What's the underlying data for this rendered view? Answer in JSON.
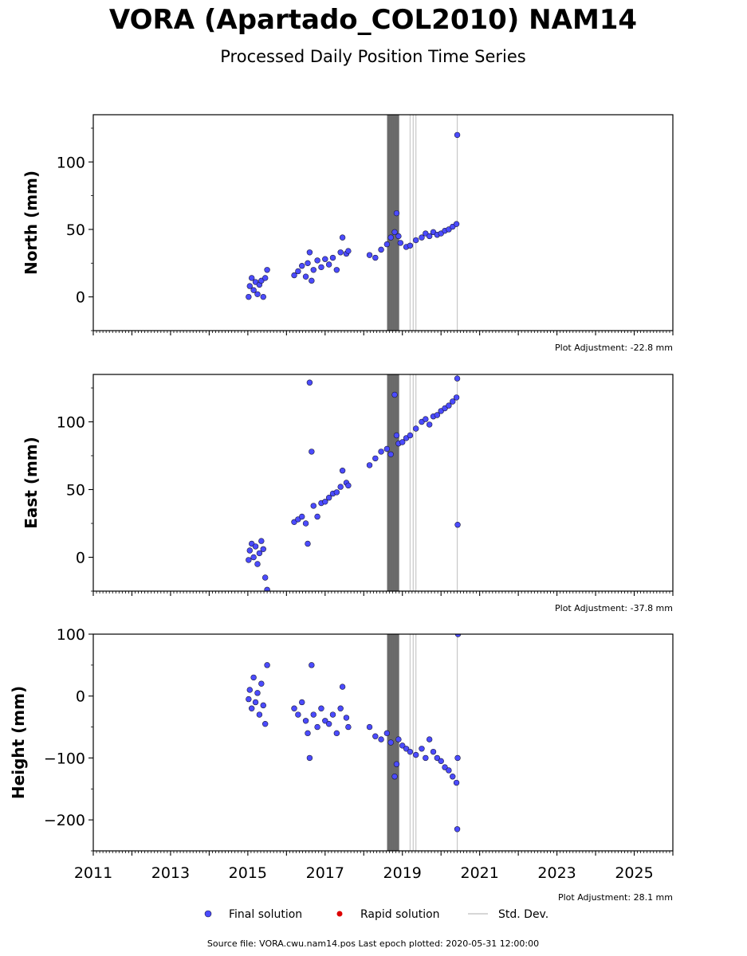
{
  "title": "VORA (Apartado_COL2010) NAM14",
  "subtitle": "Processed Daily Position Time Series",
  "source_note": "Source file: VORA.cwu.nam14.pos  Last epoch plotted: 2020-05-31 12:00:00",
  "legend": {
    "placement": "bottom-center",
    "final_label": "Final solution",
    "rapid_label": "Rapid solution",
    "std_label": "Std. Dev."
  },
  "colors": {
    "final": "#4b4bff",
    "final_edge": "#1a1a3a",
    "rapid": "#dd0000",
    "stddev": "#c8c8c8",
    "stddev_dense": "#6b6b6b"
  },
  "chart_data": [
    {
      "type": "scatter",
      "ylabel": "North (mm)",
      "adjustment": "Plot Adjustment: -22.8 mm",
      "xlim": [
        2011,
        2026
      ],
      "ylim": [
        -25,
        135
      ],
      "yticks": [
        0,
        50,
        100
      ],
      "grid": false,
      "series": [
        {
          "name": "Final solution",
          "points": [
            [
              2015.02,
              0
            ],
            [
              2015.05,
              8
            ],
            [
              2015.1,
              14
            ],
            [
              2015.15,
              5
            ],
            [
              2015.2,
              11
            ],
            [
              2015.25,
              2
            ],
            [
              2015.3,
              9
            ],
            [
              2015.35,
              12
            ],
            [
              2015.4,
              0
            ],
            [
              2015.45,
              14
            ],
            [
              2015.5,
              20
            ],
            [
              2016.2,
              16
            ],
            [
              2016.3,
              19
            ],
            [
              2016.4,
              23
            ],
            [
              2016.5,
              15
            ],
            [
              2016.55,
              25
            ],
            [
              2016.6,
              33
            ],
            [
              2016.65,
              12
            ],
            [
              2016.7,
              20
            ],
            [
              2016.8,
              27
            ],
            [
              2016.9,
              22
            ],
            [
              2017.0,
              28
            ],
            [
              2017.1,
              24
            ],
            [
              2017.2,
              29
            ],
            [
              2017.3,
              20
            ],
            [
              2017.4,
              33
            ],
            [
              2017.45,
              44
            ],
            [
              2017.55,
              32
            ],
            [
              2017.6,
              34
            ],
            [
              2018.15,
              31
            ],
            [
              2018.3,
              29
            ],
            [
              2018.45,
              35
            ],
            [
              2018.6,
              39
            ],
            [
              2018.7,
              44
            ],
            [
              2018.8,
              48
            ],
            [
              2018.85,
              62
            ],
            [
              2018.9,
              45
            ],
            [
              2018.95,
              40
            ],
            [
              2019.1,
              37
            ],
            [
              2019.2,
              38
            ],
            [
              2019.35,
              42
            ],
            [
              2019.5,
              44
            ],
            [
              2019.6,
              47
            ],
            [
              2019.7,
              45
            ],
            [
              2019.8,
              48
            ],
            [
              2019.9,
              46
            ],
            [
              2020.0,
              47
            ],
            [
              2020.1,
              49
            ],
            [
              2020.2,
              50
            ],
            [
              2020.3,
              52
            ],
            [
              2020.4,
              54
            ],
            [
              2020.42,
              120
            ]
          ]
        }
      ],
      "stddev_x": [
        2018.62,
        2018.64,
        2018.66,
        2018.68,
        2018.7,
        2018.72,
        2018.74,
        2018.76,
        2018.78,
        2018.8,
        2018.82,
        2018.84,
        2018.86,
        2018.88,
        2018.9,
        2019.2,
        2019.28,
        2019.35,
        2020.42
      ]
    },
    {
      "type": "scatter",
      "ylabel": "East (mm)",
      "adjustment": "Plot Adjustment: -37.8 mm",
      "xlim": [
        2011,
        2026
      ],
      "ylim": [
        -25,
        135
      ],
      "yticks": [
        0,
        50,
        100
      ],
      "grid": false,
      "series": [
        {
          "name": "Final solution",
          "points": [
            [
              2015.02,
              -2
            ],
            [
              2015.05,
              5
            ],
            [
              2015.1,
              10
            ],
            [
              2015.15,
              0
            ],
            [
              2015.2,
              8
            ],
            [
              2015.25,
              -5
            ],
            [
              2015.3,
              3
            ],
            [
              2015.35,
              12
            ],
            [
              2015.4,
              6
            ],
            [
              2015.45,
              -15
            ],
            [
              2015.5,
              -24
            ],
            [
              2016.2,
              26
            ],
            [
              2016.3,
              28
            ],
            [
              2016.4,
              30
            ],
            [
              2016.5,
              25
            ],
            [
              2016.55,
              10
            ],
            [
              2016.6,
              129
            ],
            [
              2016.65,
              78
            ],
            [
              2016.7,
              38
            ],
            [
              2016.8,
              30
            ],
            [
              2016.9,
              40
            ],
            [
              2017.0,
              41
            ],
            [
              2017.1,
              44
            ],
            [
              2017.2,
              47
            ],
            [
              2017.3,
              48
            ],
            [
              2017.4,
              52
            ],
            [
              2017.45,
              64
            ],
            [
              2017.55,
              55
            ],
            [
              2017.6,
              53
            ],
            [
              2018.15,
              68
            ],
            [
              2018.3,
              73
            ],
            [
              2018.45,
              78
            ],
            [
              2018.6,
              80
            ],
            [
              2018.7,
              76
            ],
            [
              2018.8,
              120
            ],
            [
              2018.85,
              90
            ],
            [
              2018.9,
              84
            ],
            [
              2019.0,
              85
            ],
            [
              2019.1,
              88
            ],
            [
              2019.2,
              90
            ],
            [
              2019.35,
              95
            ],
            [
              2019.5,
              100
            ],
            [
              2019.6,
              102
            ],
            [
              2019.7,
              98
            ],
            [
              2019.8,
              104
            ],
            [
              2019.9,
              105
            ],
            [
              2020.0,
              108
            ],
            [
              2020.1,
              110
            ],
            [
              2020.2,
              112
            ],
            [
              2020.3,
              115
            ],
            [
              2020.4,
              118
            ],
            [
              2020.42,
              132
            ],
            [
              2020.43,
              24
            ]
          ]
        }
      ],
      "stddev_x": [
        2018.62,
        2018.64,
        2018.66,
        2018.68,
        2018.7,
        2018.72,
        2018.74,
        2018.76,
        2018.78,
        2018.8,
        2018.82,
        2018.84,
        2018.86,
        2018.88,
        2018.9,
        2019.2,
        2019.28,
        2019.35,
        2020.42
      ]
    },
    {
      "type": "scatter",
      "ylabel": "Height (mm)",
      "adjustment": "Plot Adjustment: 28.1 mm",
      "xlim": [
        2011,
        2026
      ],
      "ylim": [
        -250,
        100
      ],
      "yticks": [
        -200,
        -100,
        0,
        100
      ],
      "xticks": [
        2011,
        2013,
        2015,
        2017,
        2019,
        2021,
        2023,
        2025
      ],
      "grid": false,
      "series": [
        {
          "name": "Final solution",
          "points": [
            [
              2015.02,
              -5
            ],
            [
              2015.05,
              10
            ],
            [
              2015.1,
              -20
            ],
            [
              2015.15,
              30
            ],
            [
              2015.2,
              -10
            ],
            [
              2015.25,
              5
            ],
            [
              2015.3,
              -30
            ],
            [
              2015.35,
              20
            ],
            [
              2015.4,
              -15
            ],
            [
              2015.45,
              -45
            ],
            [
              2015.5,
              50
            ],
            [
              2016.2,
              -20
            ],
            [
              2016.3,
              -30
            ],
            [
              2016.4,
              -10
            ],
            [
              2016.5,
              -40
            ],
            [
              2016.55,
              -60
            ],
            [
              2016.6,
              -100
            ],
            [
              2016.65,
              50
            ],
            [
              2016.7,
              -30
            ],
            [
              2016.8,
              -50
            ],
            [
              2016.9,
              -20
            ],
            [
              2017.0,
              -40
            ],
            [
              2017.1,
              -45
            ],
            [
              2017.2,
              -30
            ],
            [
              2017.3,
              -60
            ],
            [
              2017.4,
              -20
            ],
            [
              2017.45,
              15
            ],
            [
              2017.55,
              -35
            ],
            [
              2017.6,
              -50
            ],
            [
              2018.15,
              -50
            ],
            [
              2018.3,
              -65
            ],
            [
              2018.45,
              -70
            ],
            [
              2018.6,
              -60
            ],
            [
              2018.7,
              -75
            ],
            [
              2018.8,
              -130
            ],
            [
              2018.85,
              -110
            ],
            [
              2018.9,
              -70
            ],
            [
              2019.0,
              -80
            ],
            [
              2019.1,
              -85
            ],
            [
              2019.2,
              -90
            ],
            [
              2019.35,
              -95
            ],
            [
              2019.5,
              -85
            ],
            [
              2019.6,
              -100
            ],
            [
              2019.7,
              -70
            ],
            [
              2019.8,
              -90
            ],
            [
              2019.9,
              -100
            ],
            [
              2020.0,
              -105
            ],
            [
              2020.1,
              -115
            ],
            [
              2020.2,
              -120
            ],
            [
              2020.3,
              -130
            ],
            [
              2020.4,
              -140
            ],
            [
              2020.42,
              -215
            ],
            [
              2020.43,
              -100
            ],
            [
              2020.44,
              100
            ]
          ]
        }
      ],
      "stddev_x": [
        2018.62,
        2018.64,
        2018.66,
        2018.68,
        2018.7,
        2018.72,
        2018.74,
        2018.76,
        2018.78,
        2018.8,
        2018.82,
        2018.84,
        2018.86,
        2018.88,
        2018.9,
        2019.2,
        2019.28,
        2019.35,
        2020.42
      ]
    }
  ]
}
